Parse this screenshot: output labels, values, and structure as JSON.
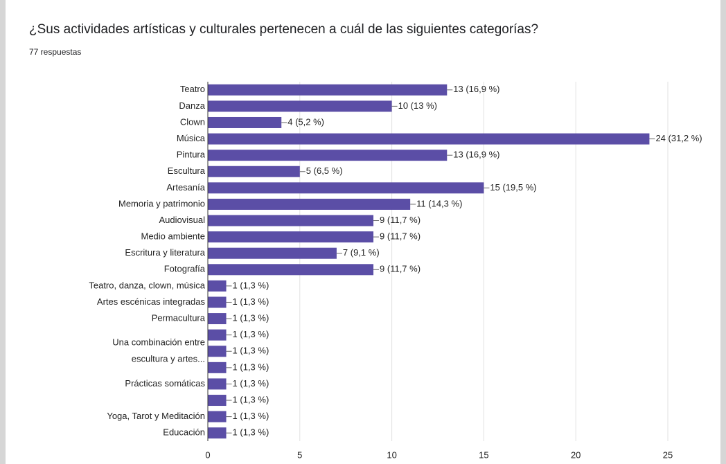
{
  "chart_data": {
    "type": "bar",
    "orientation": "horizontal",
    "title": "¿Sus actividades artísticas y culturales pertenecen a cuál de las siguientes categorías?",
    "subtitle": "77 respuestas",
    "categories": [
      "Teatro",
      "Danza",
      "Clown",
      "Música",
      "Pintura",
      "Escultura",
      "Artesanía",
      "Memoria y patrimonio",
      "Audiovisual",
      "Medio ambiente",
      "Escritura y literatura",
      "Fotografía",
      "Teatro, danza, clown, música",
      "Artes escénicas integradas",
      "Permacultura",
      null,
      [
        "Una combinación entre",
        "escultura y artes..."
      ],
      null,
      "Prácticas somáticas",
      null,
      "Yoga, Tarot y Meditación",
      "Educación"
    ],
    "values": [
      13,
      10,
      4,
      24,
      13,
      5,
      15,
      11,
      9,
      9,
      7,
      9,
      1,
      1,
      1,
      1,
      1,
      1,
      1,
      1,
      1,
      1
    ],
    "value_labels": [
      "13 (16,9 %)",
      "10 (13 %)",
      "4 (5,2 %)",
      "24 (31,2 %)",
      "13 (16,9 %)",
      "5 (6,5 %)",
      "15 (19,5 %)",
      "11 (14,3 %)",
      "9 (11,7 %)",
      "9 (11,7 %)",
      "7 (9,1 %)",
      "9 (11,7 %)",
      "1 (1,3 %)",
      "1 (1,3 %)",
      "1 (1,3 %)",
      "1 (1,3 %)",
      "1 (1,3 %)",
      "1 (1,3 %)",
      "1 (1,3 %)",
      "1 (1,3 %)",
      "1 (1,3 %)",
      "1 (1,3 %)"
    ],
    "color": "#5b4ea6",
    "xlim": [
      0,
      25
    ],
    "xticks": [
      0,
      5,
      10,
      15,
      20,
      25
    ],
    "grid": true
  }
}
